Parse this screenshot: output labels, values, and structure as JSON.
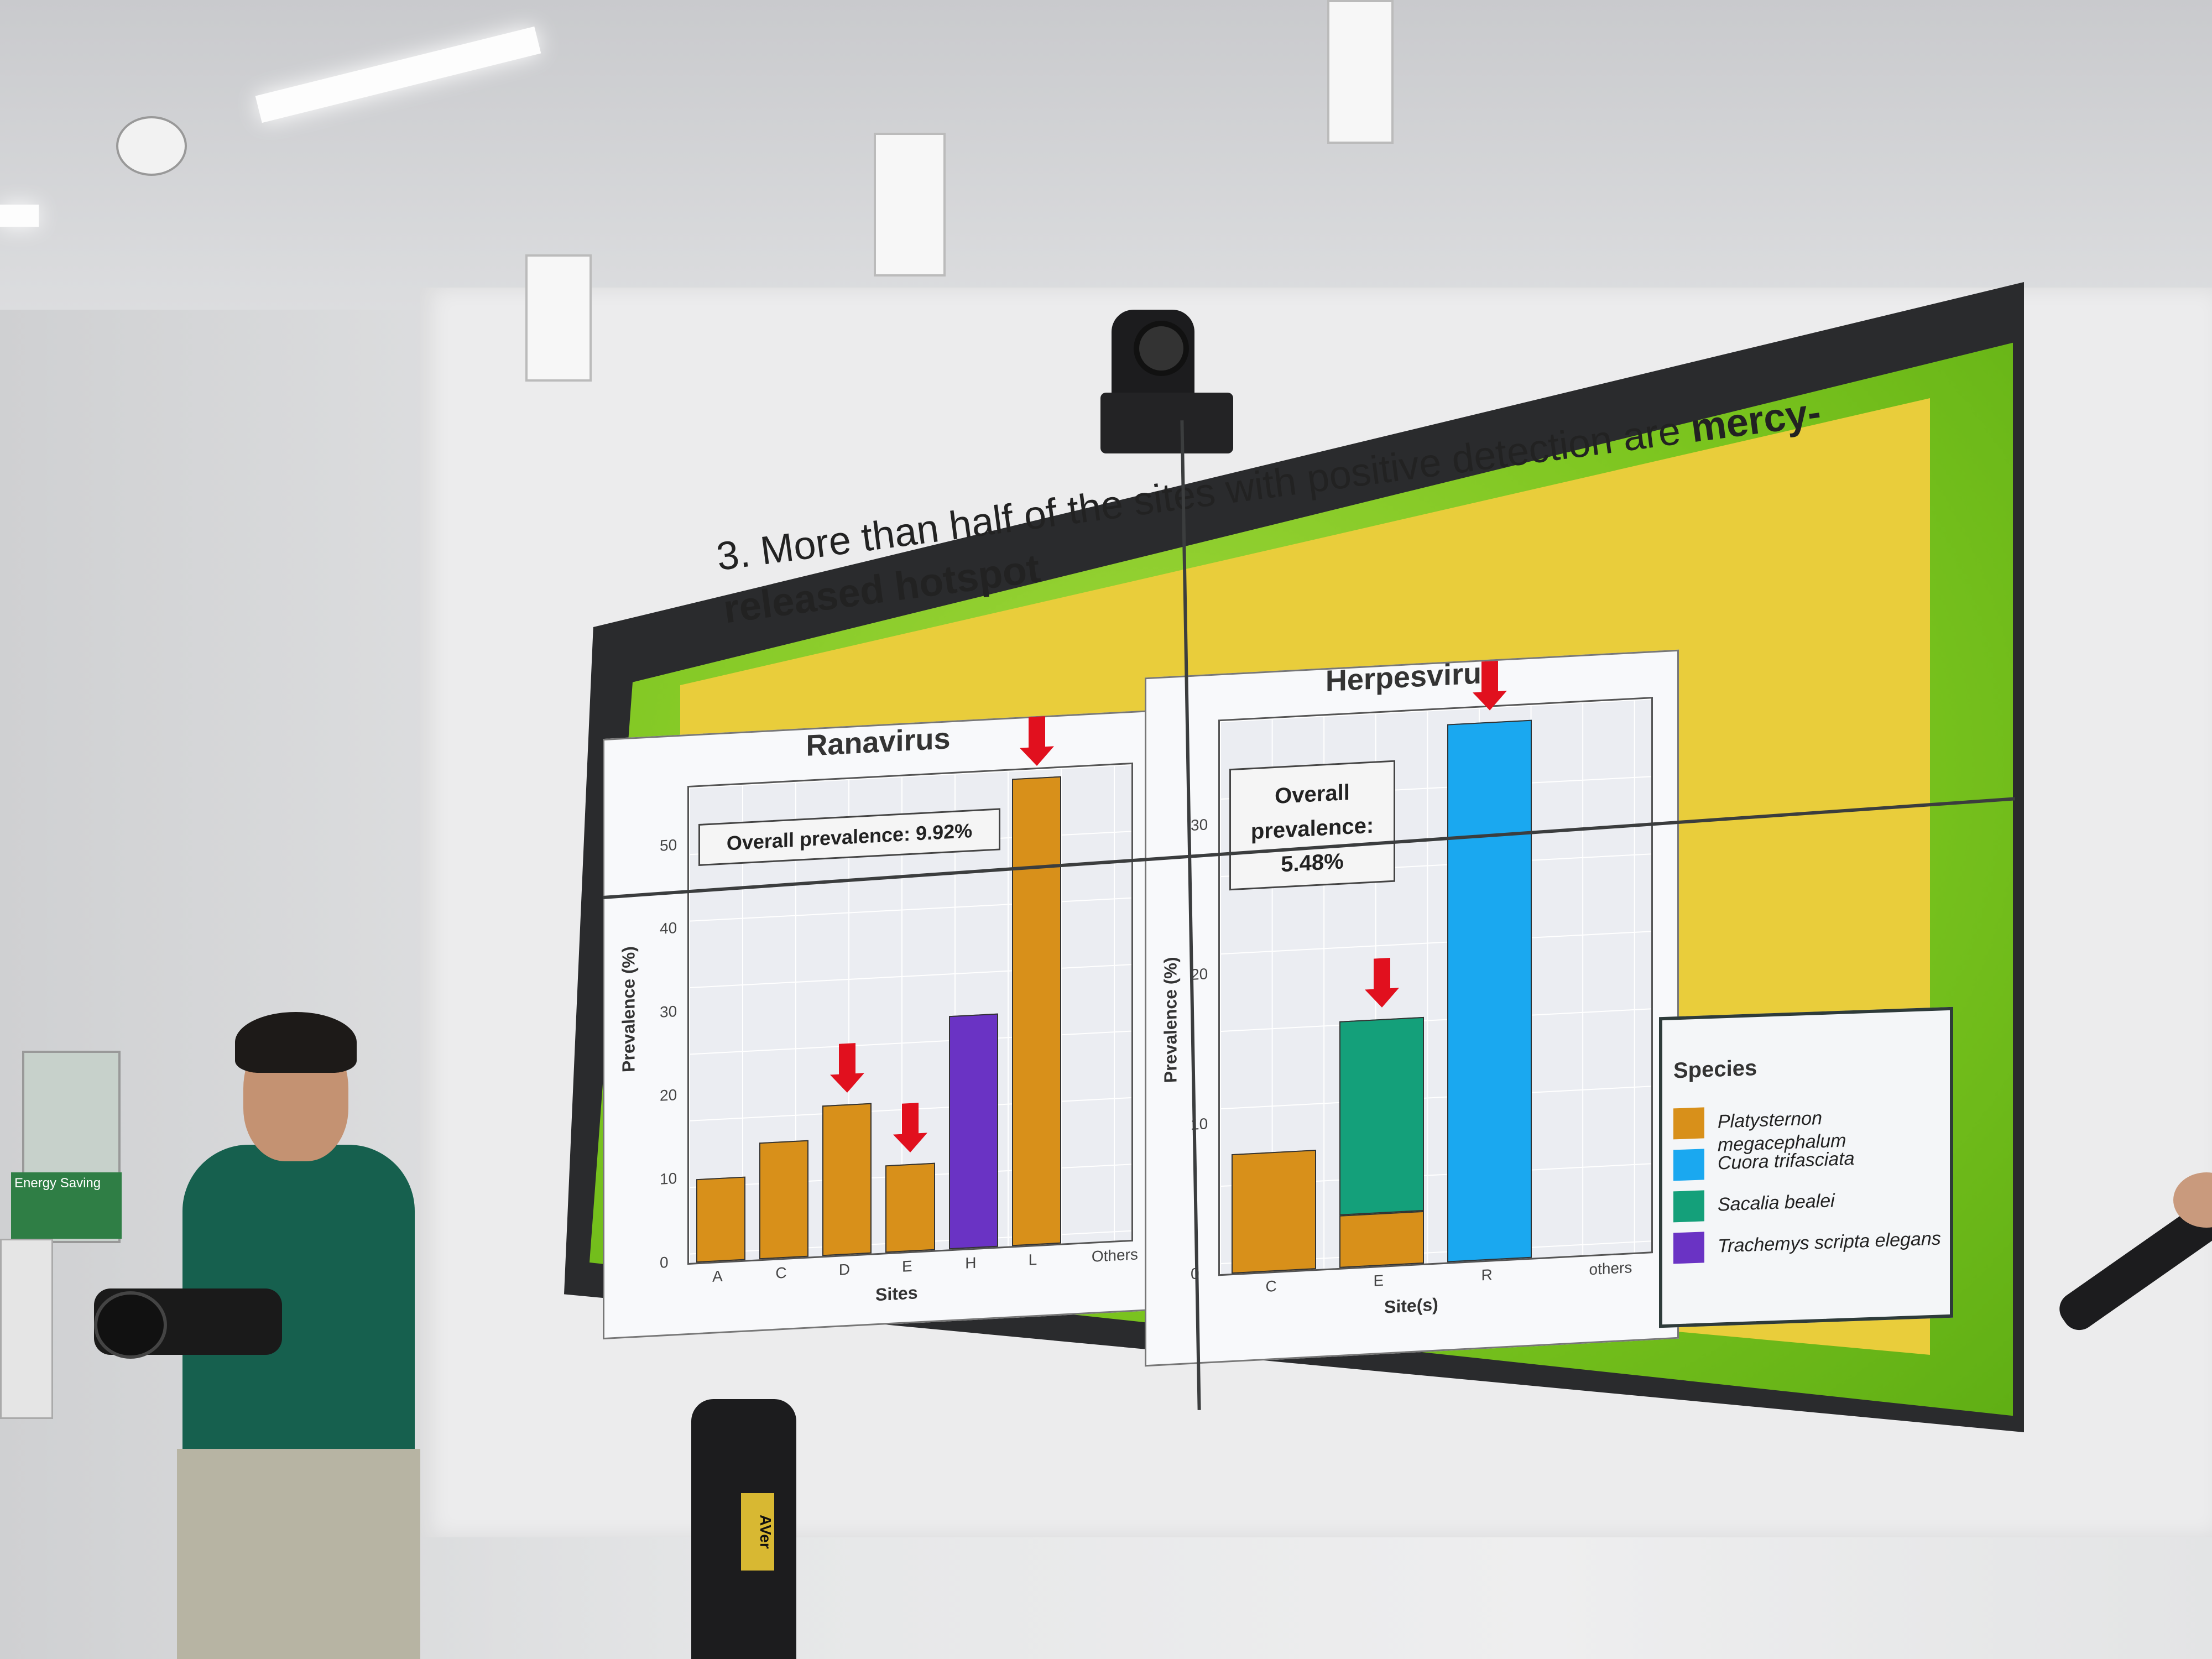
{
  "slide": {
    "title_plain": "3. More than half of the sites with positive detection are ",
    "title_bold_1": "mercy-",
    "title_bold_2": "released hotspot"
  },
  "left_chart": {
    "title": "Ranavirus",
    "annotation": "Overall prevalence: 9.92%",
    "ylabel": "Prevalence (%)",
    "xlabel": "Sites",
    "yticks": [
      "0",
      "10",
      "20",
      "30",
      "40",
      "50"
    ],
    "xticks": [
      "A",
      "C",
      "D",
      "E",
      "H",
      "L",
      "Others"
    ]
  },
  "right_chart": {
    "title": "Herpesvirus",
    "annotation": "Overall prevalence: 5.48%",
    "ylabel": "Prevalence (%)",
    "xlabel": "Site(s)",
    "yticks": [
      "0",
      "10",
      "20",
      "30"
    ],
    "xticks": [
      "C",
      "E",
      "R",
      "others"
    ]
  },
  "legend": {
    "title": "Species",
    "items": [
      {
        "label": "Platysternon megacephalum",
        "color": "#d8901a"
      },
      {
        "label": "Cuora trifasciata",
        "color": "#1aa8f0"
      },
      {
        "label": "Sacalia bealei",
        "color": "#14a07a"
      },
      {
        "label": "Trachemys scripta elegans",
        "color": "#6a33c4"
      }
    ]
  },
  "chart_data": [
    {
      "type": "bar",
      "title": "Ranavirus",
      "xlabel": "Sites",
      "ylabel": "Prevalence (%)",
      "categories": [
        "A",
        "C",
        "D",
        "E",
        "H",
        "L",
        "Others"
      ],
      "series": [
        {
          "name": "Platysternon megacephalum",
          "values": [
            10,
            14,
            18,
            10.5,
            0,
            56,
            0
          ]
        },
        {
          "name": "Trachemys scripta elegans",
          "values": [
            0,
            0,
            0,
            0,
            28,
            0,
            0
          ]
        }
      ],
      "ylim": [
        0,
        57
      ]
    },
    {
      "type": "bar",
      "title": "Herpesvirus",
      "xlabel": "Site(s)",
      "ylabel": "Prevalence (%)",
      "categories": [
        "C",
        "E",
        "R",
        "others"
      ],
      "series": [
        {
          "name": "Platysternon megacephalum",
          "values": [
            8,
            3.5,
            0,
            0
          ]
        },
        {
          "name": "Sacalia bealei",
          "values": [
            0,
            13,
            0,
            0
          ]
        },
        {
          "name": "Cuora trifasciata",
          "values": [
            0,
            0,
            36,
            0
          ]
        }
      ],
      "ylim": [
        0,
        37
      ]
    }
  ],
  "misc": {
    "sign_text": "Energy Saving",
    "device_label": "AVer"
  }
}
